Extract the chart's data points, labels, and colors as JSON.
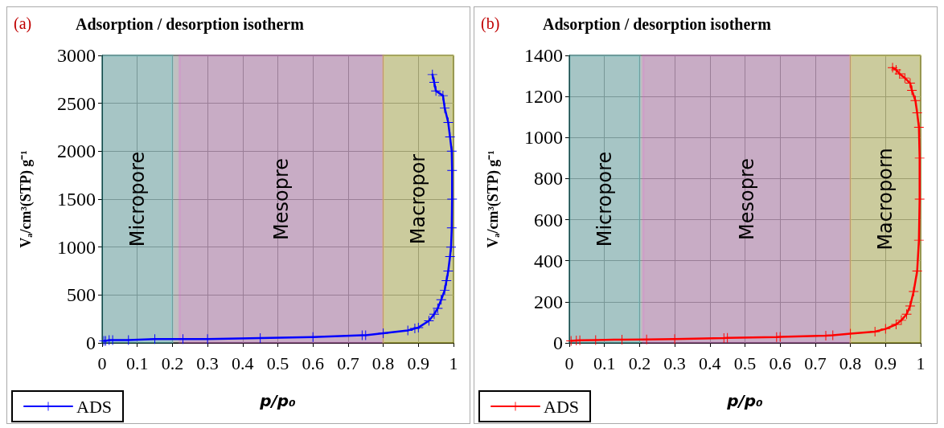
{
  "chart_data": [
    {
      "type": "line",
      "title": "Adsorption / desorption isotherm",
      "annotations": [
        "(a)"
      ],
      "xlabel": "p/p₀",
      "ylabel": "Vₐ/cm³(STP) g⁻¹",
      "xlim": [
        0,
        1
      ],
      "xticks": [
        0,
        0.1,
        0.2,
        0.3,
        0.4,
        0.5,
        0.6,
        0.7,
        0.8,
        0.9,
        1
      ],
      "ylim": [
        0,
        3000
      ],
      "yticks": [
        0,
        500,
        1000,
        1500,
        2000,
        2500,
        3000
      ],
      "grid": true,
      "legend": "bottom left",
      "marker": "cross",
      "line_style": "solid",
      "bands": [
        {
          "axis": "x",
          "from": 0,
          "to": 0.2,
          "label": "Micropore",
          "color": "#33dddd"
        },
        {
          "axis": "x",
          "from": 0.22,
          "to": 0.8,
          "label": "Mesopre",
          "color": "#ee55dd"
        },
        {
          "axis": "x",
          "from": 0.8,
          "to": 1,
          "label": "Macropor",
          "color": "#ffff00"
        }
      ],
      "series": [
        {
          "name": "ADS",
          "color": "#0000ff",
          "x": [
            0.005,
            0.01,
            0.02,
            0.03,
            0.075,
            0.15,
            0.23,
            0.3,
            0.45,
            0.6,
            0.74,
            0.75,
            0.8,
            0.87,
            0.89,
            0.9,
            0.93,
            0.945,
            0.955,
            0.965,
            0.975,
            0.98,
            0.985,
            0.99,
            0.993,
            0.995,
            0.996,
            0.996,
            0.995,
            0.99,
            0.985,
            0.975,
            0.97,
            0.95,
            0.945,
            0.94
          ],
          "values": [
            20,
            20,
            30,
            30,
            30,
            40,
            40,
            40,
            50,
            60,
            80,
            80,
            100,
            130,
            150,
            160,
            230,
            300,
            360,
            450,
            550,
            650,
            750,
            900,
            1000,
            1200,
            1500,
            1800,
            2000,
            2150,
            2300,
            2450,
            2580,
            2630,
            2720,
            2800
          ]
        }
      ]
    },
    {
      "type": "line",
      "title": "Adsorption / desorption isotherm",
      "annotations": [
        "(b)"
      ],
      "xlabel": "p/p₀",
      "ylabel": "Vₐ/cm³(STP) g⁻¹",
      "xlim": [
        0,
        1
      ],
      "xticks": [
        0,
        0.1,
        0.2,
        0.3,
        0.4,
        0.5,
        0.6,
        0.7,
        0.8,
        0.9,
        1
      ],
      "ylim": [
        0,
        1400
      ],
      "yticks": [
        0,
        200,
        400,
        600,
        800,
        1000,
        1200,
        1400
      ],
      "grid": true,
      "legend": "bottom left",
      "marker": "cross",
      "line_style": "solid",
      "bands": [
        {
          "axis": "x",
          "from": 0,
          "to": 0.2,
          "label": "Micropore",
          "color": "#33dddd"
        },
        {
          "axis": "x",
          "from": 0.21,
          "to": 0.8,
          "label": "Mesopre",
          "color": "#ee55dd"
        },
        {
          "axis": "x",
          "from": 0.8,
          "to": 1,
          "label": "Macroporn",
          "color": "#ffff00"
        }
      ],
      "series": [
        {
          "name": "ADS",
          "color": "#ff0000",
          "x": [
            0.005,
            0.02,
            0.03,
            0.075,
            0.15,
            0.22,
            0.3,
            0.44,
            0.45,
            0.59,
            0.6,
            0.73,
            0.75,
            0.8,
            0.87,
            0.9,
            0.93,
            0.945,
            0.96,
            0.97,
            0.98,
            0.99,
            0.995,
            0.997,
            0.997,
            0.995,
            0.99,
            0.985,
            0.975,
            0.97,
            0.955,
            0.94,
            0.93,
            0.92
          ],
          "values": [
            10,
            12,
            13,
            14,
            16,
            17,
            19,
            23,
            24,
            28,
            29,
            35,
            37,
            45,
            55,
            68,
            90,
            110,
            140,
            180,
            250,
            350,
            500,
            700,
            900,
            1050,
            1120,
            1180,
            1230,
            1265,
            1290,
            1310,
            1330,
            1340
          ]
        }
      ]
    }
  ]
}
